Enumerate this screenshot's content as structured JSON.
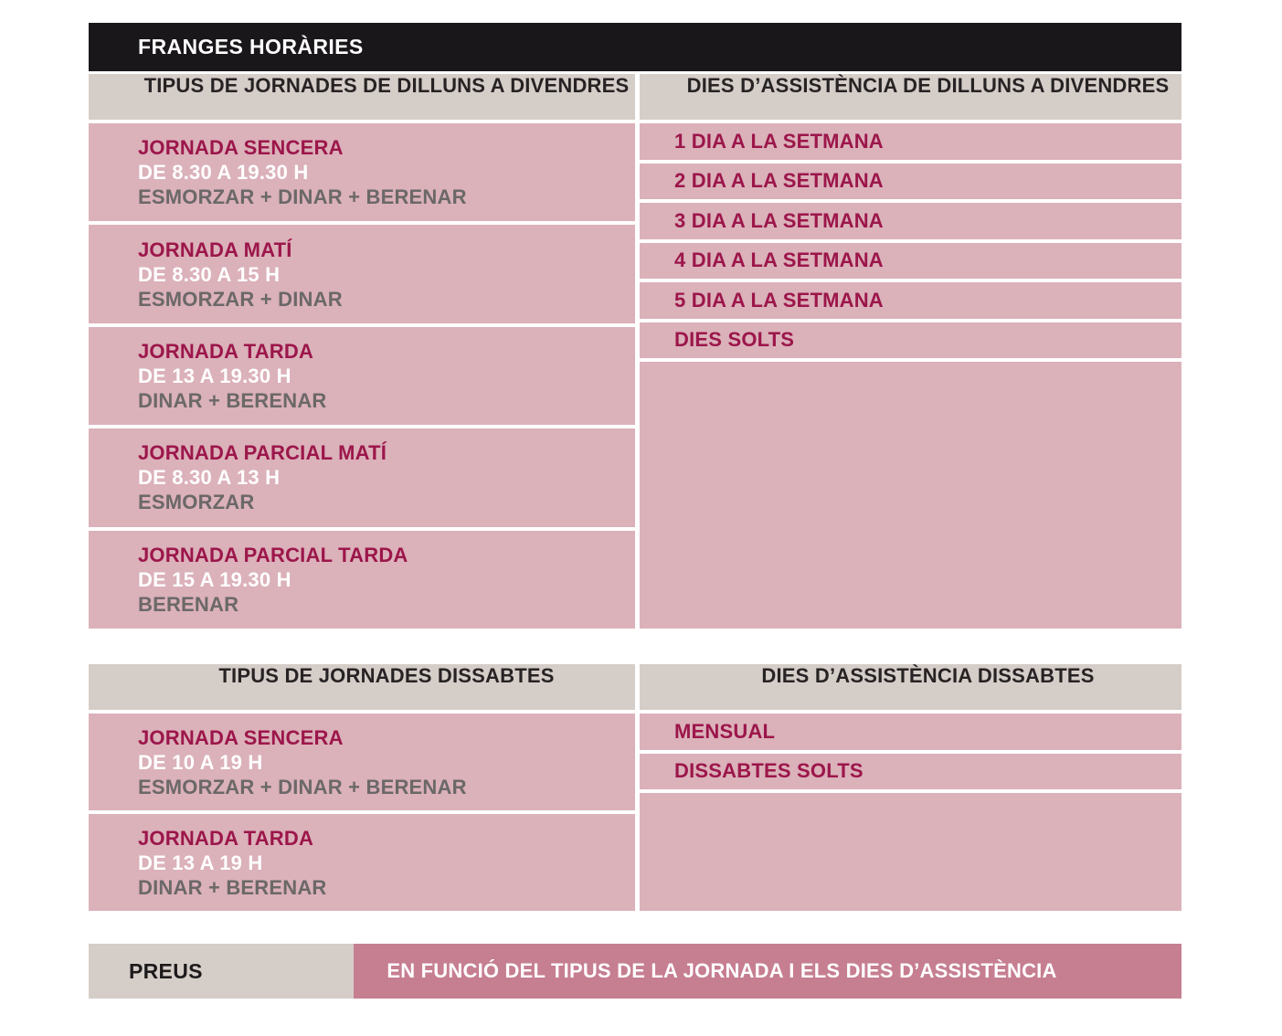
{
  "title": "FRANGES HORÀRIES",
  "colors": {
    "header_bar": "#1a171b",
    "column_header_bg": "#d5cdc8",
    "row_bg": "#dbb1ba",
    "accent_text": "#9c164a",
    "muted_text": "#6b6868",
    "preus_value_bg": "#c67e91"
  },
  "sections": [
    {
      "left_header": "TIPUS DE JORNADES DE DILLUNS A DIVENDRES",
      "right_header": "DIES D’ASSISTÈNCIA DE DILLUNS A DIVENDRES",
      "jornades": [
        {
          "name": "JORNADA SENCERA",
          "time": "DE 8.30 A 19.30 H",
          "meals": "ESMORZAR + DINAR + BERENAR"
        },
        {
          "name": "JORNADA MATÍ",
          "time": "DE 8.30 A 15 H",
          "meals": "ESMORZAR + DINAR"
        },
        {
          "name": "JORNADA TARDA",
          "time": "DE 13 A 19.30 H",
          "meals": "DINAR + BERENAR"
        },
        {
          "name": "JORNADA PARCIAL MATÍ",
          "time": "DE 8.30 A 13 H",
          "meals": "ESMORZAR"
        },
        {
          "name": "JORNADA PARCIAL TARDA",
          "time": "DE 15 A 19.30 H",
          "meals": "BERENAR"
        }
      ],
      "dies": [
        "1 DIA A LA SETMANA",
        "2 DIA A LA SETMANA",
        "3 DIA A LA SETMANA",
        "4 DIA A LA SETMANA",
        "5 DIA A LA SETMANA",
        "DIES SOLTS"
      ]
    },
    {
      "left_header": "TIPUS DE JORNADES DISSABTES",
      "right_header": "DIES D’ASSISTÈNCIA DISSABTES",
      "jornades": [
        {
          "name": "JORNADA SENCERA",
          "time": "DE 10 A 19 H",
          "meals": "ESMORZAR + DINAR + BERENAR"
        },
        {
          "name": "JORNADA TARDA",
          "time": "DE 13 A 19 H",
          "meals": "DINAR + BERENAR"
        }
      ],
      "dies": [
        "MENSUAL",
        "DISSABTES SOLTS"
      ]
    }
  ],
  "preus": {
    "label": "PREUS",
    "value": "EN FUNCIÓ DEL TIPUS DE LA JORNADA I ELS DIES D’ASSISTÈNCIA"
  }
}
